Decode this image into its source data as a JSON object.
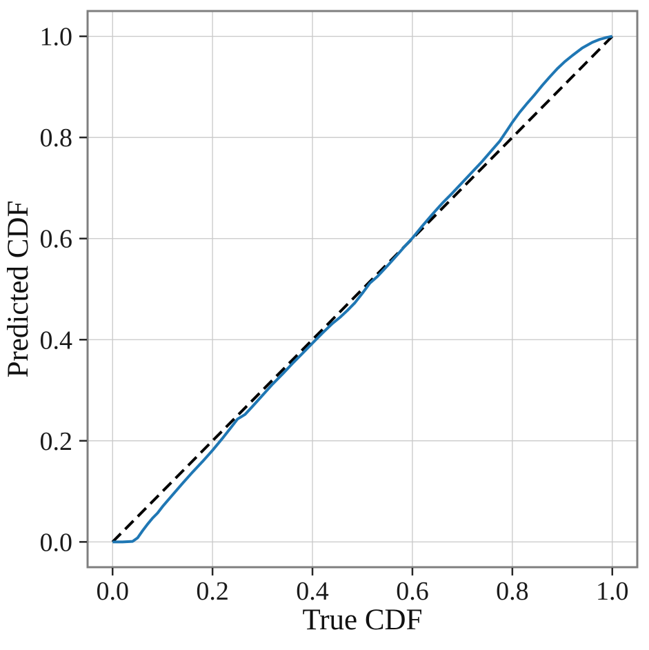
{
  "chart_data": {
    "type": "line",
    "title": "",
    "xlabel": "True CDF",
    "ylabel": "Predicted CDF",
    "xlim": [
      -0.05,
      1.05
    ],
    "ylim": [
      -0.05,
      1.05
    ],
    "x_ticks": [
      0.0,
      0.2,
      0.4,
      0.6,
      0.8,
      1.0
    ],
    "y_ticks": [
      0.0,
      0.2,
      0.4,
      0.6,
      0.8,
      1.0
    ],
    "x_tick_labels": [
      "0.0",
      "0.2",
      "0.4",
      "0.6",
      "0.8",
      "1.0"
    ],
    "y_tick_labels": [
      "0.0",
      "0.2",
      "0.4",
      "0.6",
      "0.8",
      "1.0"
    ],
    "grid": true,
    "legend": false,
    "series": [
      {
        "name": "predicted-cdf-curve",
        "color": "#1f77b4",
        "style": "solid",
        "line_width": 4,
        "points": [
          [
            0.0,
            0.0
          ],
          [
            0.02,
            0.0
          ],
          [
            0.04,
            0.001
          ],
          [
            0.05,
            0.008
          ],
          [
            0.06,
            0.022
          ],
          [
            0.07,
            0.035
          ],
          [
            0.08,
            0.047
          ],
          [
            0.09,
            0.057
          ],
          [
            0.1,
            0.07
          ],
          [
            0.12,
            0.093
          ],
          [
            0.14,
            0.116
          ],
          [
            0.16,
            0.138
          ],
          [
            0.18,
            0.159
          ],
          [
            0.2,
            0.181
          ],
          [
            0.22,
            0.205
          ],
          [
            0.24,
            0.23
          ],
          [
            0.25,
            0.243
          ],
          [
            0.265,
            0.252
          ],
          [
            0.28,
            0.268
          ],
          [
            0.3,
            0.29
          ],
          [
            0.32,
            0.312
          ],
          [
            0.34,
            0.332
          ],
          [
            0.36,
            0.353
          ],
          [
            0.38,
            0.373
          ],
          [
            0.4,
            0.393
          ],
          [
            0.42,
            0.413
          ],
          [
            0.44,
            0.432
          ],
          [
            0.455,
            0.444
          ],
          [
            0.47,
            0.458
          ],
          [
            0.485,
            0.473
          ],
          [
            0.5,
            0.492
          ],
          [
            0.515,
            0.512
          ],
          [
            0.53,
            0.525
          ],
          [
            0.55,
            0.546
          ],
          [
            0.57,
            0.568
          ],
          [
            0.585,
            0.585
          ],
          [
            0.6,
            0.601
          ],
          [
            0.62,
            0.625
          ],
          [
            0.64,
            0.648
          ],
          [
            0.66,
            0.67
          ],
          [
            0.68,
            0.69
          ],
          [
            0.7,
            0.711
          ],
          [
            0.72,
            0.732
          ],
          [
            0.74,
            0.753
          ],
          [
            0.76,
            0.776
          ],
          [
            0.775,
            0.793
          ],
          [
            0.79,
            0.815
          ],
          [
            0.8,
            0.83
          ],
          [
            0.815,
            0.85
          ],
          [
            0.83,
            0.868
          ],
          [
            0.845,
            0.885
          ],
          [
            0.86,
            0.903
          ],
          [
            0.875,
            0.92
          ],
          [
            0.89,
            0.936
          ],
          [
            0.905,
            0.95
          ],
          [
            0.92,
            0.962
          ],
          [
            0.94,
            0.977
          ],
          [
            0.96,
            0.988
          ],
          [
            0.975,
            0.994
          ],
          [
            0.99,
            0.998
          ],
          [
            1.0,
            1.0
          ]
        ]
      },
      {
        "name": "ideal-diagonal",
        "color": "#000000",
        "style": "dashed",
        "line_width": 4,
        "points": [
          [
            0.0,
            0.0
          ],
          [
            1.0,
            1.0
          ]
        ]
      }
    ]
  },
  "colors": {
    "background": "#ffffff",
    "grid": "#c8c8c8",
    "spine": "#7f7f7f",
    "tick": "#262626",
    "text": "#1a1a1a",
    "curve": "#1f77b4",
    "reference": "#000000"
  }
}
